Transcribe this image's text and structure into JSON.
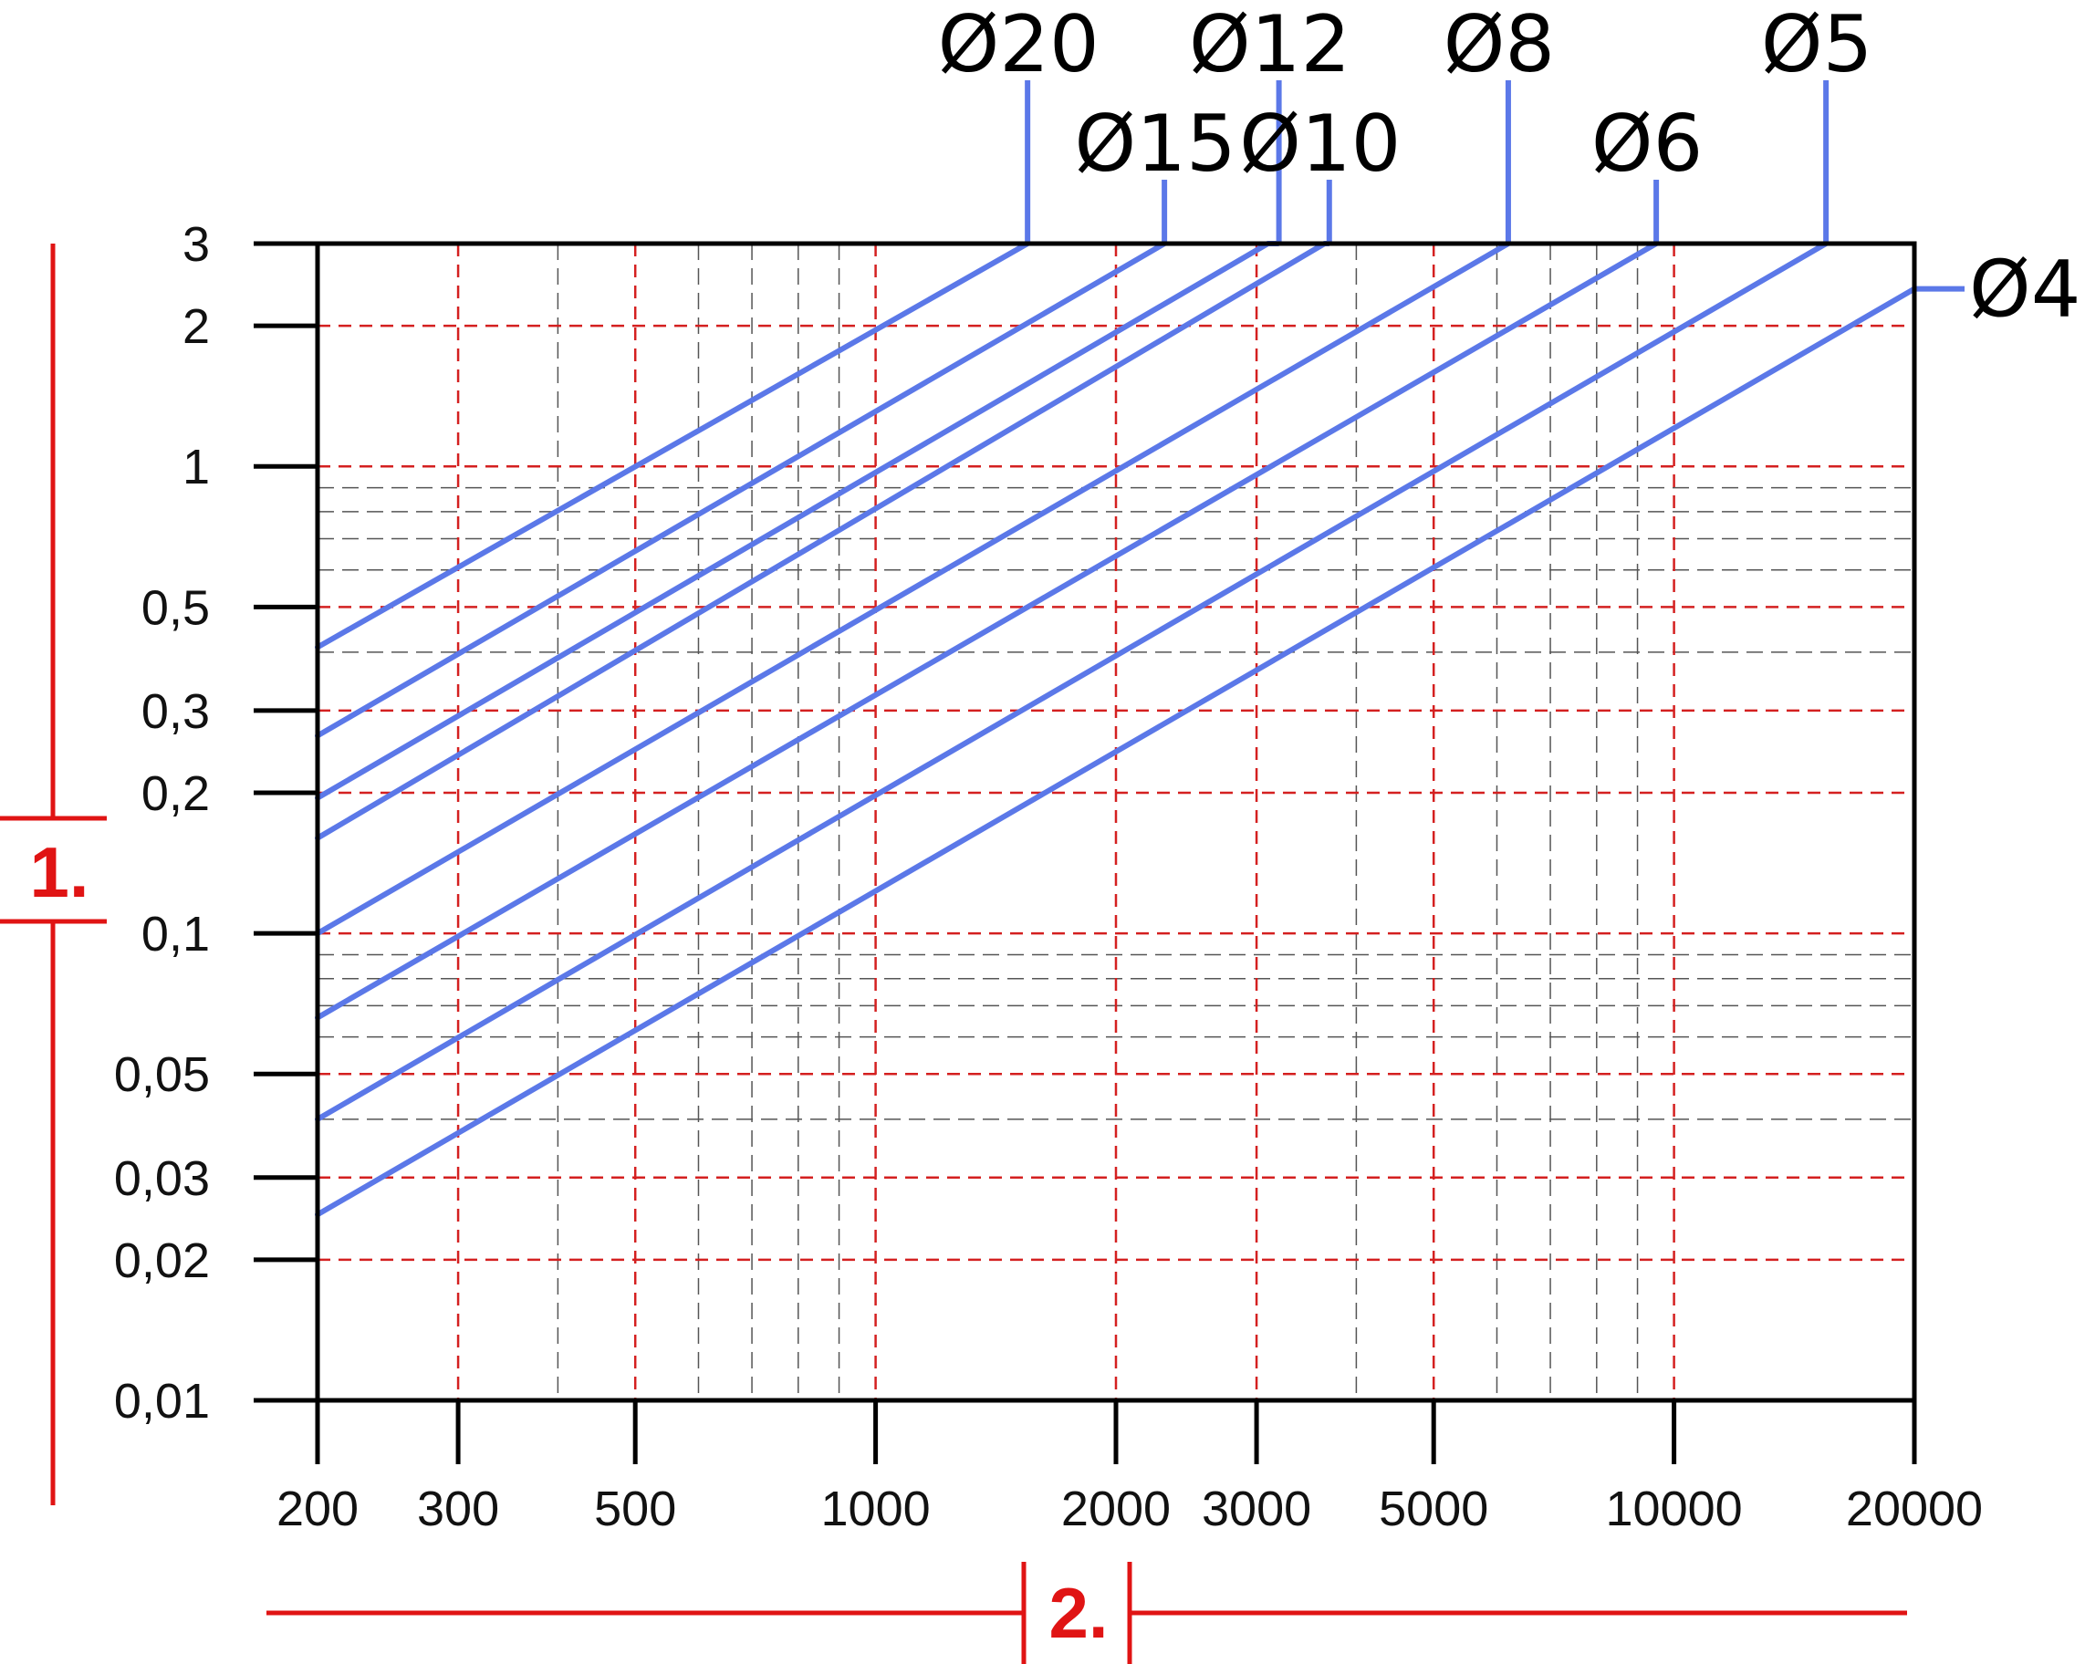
{
  "chart_data": {
    "type": "line",
    "title": "",
    "xlabel": "",
    "ylabel": "",
    "x_scale": "log",
    "y_scale": "log",
    "xlim": [
      200,
      20000
    ],
    "ylim": [
      0.01,
      3
    ],
    "grid": true,
    "x_ticks": [
      200,
      300,
      500,
      1000,
      2000,
      3000,
      5000,
      10000,
      20000
    ],
    "x_tick_labels": [
      "200",
      "300",
      "500",
      "1000",
      "2000",
      "3000",
      "5000",
      "10000",
      "20000"
    ],
    "y_ticks": [
      0.01,
      0.02,
      0.03,
      0.05,
      0.1,
      0.2,
      0.3,
      0.5,
      1,
      2,
      3
    ],
    "y_tick_labels": [
      "0,01",
      "0,02",
      "0,03",
      "0,05",
      "0,1",
      "0,2",
      "0,3",
      "0,5",
      "1",
      "2",
      "3"
    ],
    "minor_x_ticks": [
      400,
      600,
      700,
      800,
      900,
      4000,
      6000,
      7000,
      8000,
      9000
    ],
    "minor_y_ticks": [
      0.04,
      0.06,
      0.07,
      0.08,
      0.09,
      0.4,
      0.6,
      0.7,
      0.8,
      0.9
    ],
    "series": [
      {
        "name": "Ø20",
        "points": [
          [
            200,
            0.41
          ],
          [
            1550,
            3
          ]
        ],
        "label_x": 1550
      },
      {
        "name": "Ø15",
        "points": [
          [
            200,
            0.265
          ],
          [
            2300,
            3
          ]
        ],
        "label_x": 2300
      },
      {
        "name": "Ø12",
        "points": [
          [
            200,
            0.195
          ],
          [
            3100,
            3
          ]
        ],
        "label_x": 3200
      },
      {
        "name": "Ø10",
        "points": [
          [
            200,
            0.16
          ],
          [
            3650,
            3
          ]
        ],
        "label_x": 3700
      },
      {
        "name": "Ø8",
        "points": [
          [
            200,
            0.1
          ],
          [
            6200,
            3
          ]
        ],
        "label_x": 6200
      },
      {
        "name": "Ø6",
        "points": [
          [
            200,
            0.066
          ],
          [
            9500,
            3
          ]
        ],
        "label_x": 9500
      },
      {
        "name": "Ø5",
        "points": [
          [
            200,
            0.04
          ],
          [
            15500,
            3
          ]
        ],
        "label_x": 15500
      },
      {
        "name": "Ø4",
        "points": [
          [
            200,
            0.025
          ],
          [
            20000,
            2.4
          ]
        ],
        "label_x": 20000
      }
    ],
    "colors": {
      "series": "#5b78e8",
      "major_grid": "#d42020",
      "minor_grid": "#555555",
      "axis": "#000000",
      "markers": "#e01414"
    },
    "annotations": {
      "y_axis_marker": "1.",
      "x_axis_marker": "2."
    }
  }
}
